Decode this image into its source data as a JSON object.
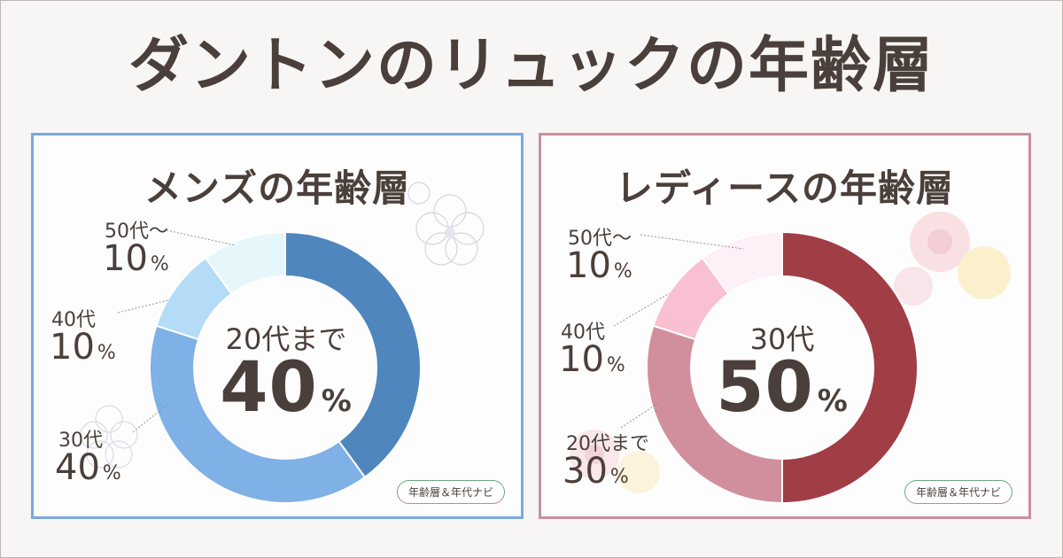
{
  "title": "ダントンのリュックの年齢層",
  "badge": "年齢層＆年代ナビ",
  "pct_sign": "%",
  "colors": {
    "men_border": "#7aa9db",
    "women_border": "#c98fa0",
    "text": "#4a3f3a"
  },
  "chart_data": [
    {
      "type": "pie",
      "subtype": "donut",
      "title": "メンズの年齢層",
      "categories": [
        "20代まで",
        "30代",
        "40代",
        "50代～"
      ],
      "values": [
        40,
        40,
        10,
        10
      ],
      "unit": "%",
      "colors": [
        "#4f86bd",
        "#7fb0e6",
        "#b5dcf6",
        "#e6f7fc"
      ],
      "highlight": {
        "label": "20代まで",
        "value": "40"
      },
      "external_labels": [
        {
          "category": "50代～",
          "value": "10"
        },
        {
          "category": "40代",
          "value": "10"
        },
        {
          "category": "30代",
          "value": "40"
        }
      ]
    },
    {
      "type": "pie",
      "subtype": "donut",
      "title": "レディースの年齢層",
      "categories": [
        "30代",
        "20代まで",
        "40代",
        "50代～"
      ],
      "values": [
        50,
        30,
        10,
        10
      ],
      "unit": "%",
      "colors": [
        "#a13d45",
        "#d18f9e",
        "#f8c0d1",
        "#fdf0f6"
      ],
      "highlight": {
        "label": "30代",
        "value": "50"
      },
      "external_labels": [
        {
          "category": "50代～",
          "value": "10"
        },
        {
          "category": "40代",
          "value": "10"
        },
        {
          "category": "20代まで",
          "value": "30"
        }
      ]
    }
  ]
}
